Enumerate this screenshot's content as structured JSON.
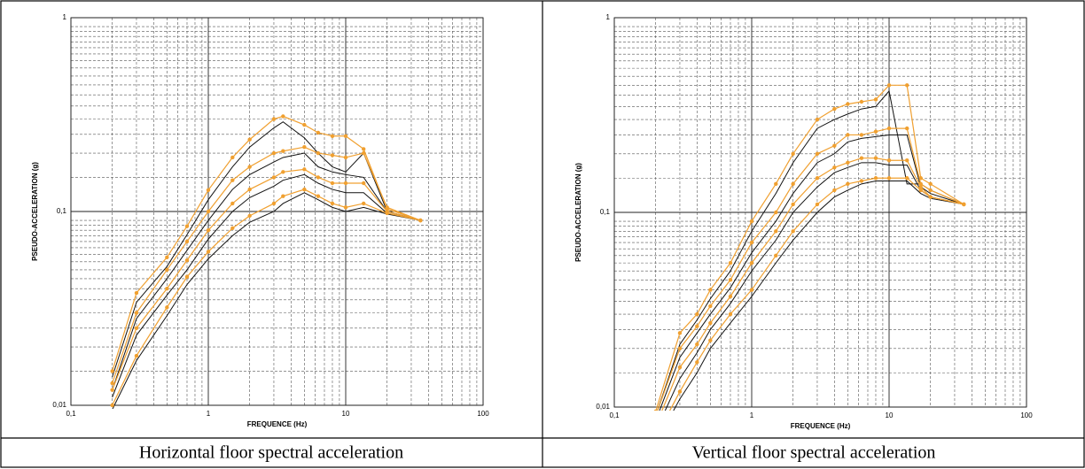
{
  "chart_data": [
    {
      "type": "line",
      "log_x": true,
      "log_y": true,
      "grid": true,
      "xlabel": "FREQUENCE (Hz)",
      "ylabel": "PSEUDO-ACCELERATION (g)",
      "caption": "Horizontal floor spectral acceleration",
      "xlim": [
        0.1,
        100
      ],
      "ylim": [
        0.01,
        1
      ],
      "xticks": [
        {
          "value": 0.1,
          "label": "0,1"
        },
        1,
        10,
        100
      ],
      "yticks": [
        {
          "value": 0.01,
          "label": "0,01"
        },
        {
          "value": 0.1,
          "label": "0,1"
        },
        1
      ],
      "x": [
        0.2,
        0.3,
        0.5,
        0.7,
        1,
        1.5,
        2,
        3,
        3.5,
        5,
        6.3,
        8,
        10,
        13.5,
        20,
        35
      ],
      "series": [
        {
          "color": "#f0a030",
          "marker": true,
          "values": [
            0.015,
            0.038,
            0.058,
            0.084,
            0.129,
            0.19,
            0.235,
            0.3,
            0.31,
            0.28,
            0.255,
            0.245,
            0.245,
            0.21,
            0.103,
            0.09
          ]
        },
        {
          "color": "#f0a030",
          "marker": true,
          "values": [
            0.013,
            0.03,
            0.05,
            0.07,
            0.1,
            0.145,
            0.17,
            0.2,
            0.205,
            0.215,
            0.2,
            0.195,
            0.19,
            0.2,
            0.105,
            0.09
          ]
        },
        {
          "color": "#f0a030",
          "marker": true,
          "values": [
            0.012,
            0.025,
            0.04,
            0.056,
            0.08,
            0.11,
            0.13,
            0.15,
            0.16,
            0.165,
            0.15,
            0.14,
            0.14,
            0.14,
            0.1,
            0.09
          ]
        },
        {
          "color": "#f0a030",
          "marker": true,
          "values": [
            0.01,
            0.018,
            0.032,
            0.046,
            0.062,
            0.082,
            0.095,
            0.11,
            0.12,
            0.13,
            0.12,
            0.11,
            0.105,
            0.11,
            0.098,
            0.09
          ]
        },
        {
          "color": "#111111",
          "marker": false,
          "values": [
            0.014,
            0.034,
            0.052,
            0.076,
            0.115,
            0.17,
            0.215,
            0.27,
            0.29,
            0.24,
            0.2,
            0.17,
            0.16,
            0.2,
            0.1,
            0.09
          ]
        },
        {
          "color": "#111111",
          "marker": false,
          "values": [
            0.012,
            0.028,
            0.045,
            0.063,
            0.09,
            0.13,
            0.155,
            0.18,
            0.19,
            0.2,
            0.17,
            0.16,
            0.155,
            0.15,
            0.1,
            0.09
          ]
        },
        {
          "color": "#111111",
          "marker": false,
          "values": [
            0.011,
            0.023,
            0.037,
            0.05,
            0.072,
            0.1,
            0.118,
            0.135,
            0.145,
            0.155,
            0.14,
            0.13,
            0.125,
            0.125,
            0.098,
            0.09
          ]
        },
        {
          "color": "#111111",
          "marker": false,
          "values": [
            0.0095,
            0.017,
            0.029,
            0.042,
            0.057,
            0.075,
            0.088,
            0.1,
            0.11,
            0.125,
            0.115,
            0.105,
            0.1,
            0.105,
            0.097,
            0.09
          ]
        }
      ]
    },
    {
      "type": "line",
      "log_x": true,
      "log_y": true,
      "grid": true,
      "xlabel": "FREQUENCE (Hz)",
      "ylabel": "PSEUDO-ACCELERATION (g)",
      "caption": "Vertical floor spectral acceleration",
      "xlim": [
        0.1,
        100
      ],
      "ylim": [
        0.01,
        1
      ],
      "xticks": [
        {
          "value": 0.1,
          "label": "0,1"
        },
        1,
        10,
        100
      ],
      "yticks": [
        {
          "value": 0.01,
          "label": "0,01"
        },
        {
          "value": 0.1,
          "label": "0,1"
        },
        1
      ],
      "x": [
        0.2,
        0.3,
        0.4,
        0.5,
        0.7,
        1,
        1.5,
        2,
        3,
        4,
        5,
        6.3,
        8,
        10,
        13.5,
        17,
        20,
        35
      ],
      "series": [
        {
          "color": "#f0a030",
          "marker": true,
          "values": [
            0.0095,
            0.024,
            0.03,
            0.04,
            0.055,
            0.09,
            0.14,
            0.2,
            0.3,
            0.34,
            0.36,
            0.37,
            0.38,
            0.45,
            0.45,
            0.15,
            0.14,
            0.11
          ]
        },
        {
          "color": "#f0a030",
          "marker": true,
          "values": [
            0.009,
            0.02,
            0.026,
            0.033,
            0.045,
            0.07,
            0.1,
            0.14,
            0.2,
            0.22,
            0.25,
            0.25,
            0.26,
            0.27,
            0.27,
            0.14,
            0.13,
            0.11
          ]
        },
        {
          "color": "#f0a030",
          "marker": true,
          "values": [
            0.008,
            0.016,
            0.021,
            0.027,
            0.037,
            0.055,
            0.08,
            0.11,
            0.15,
            0.17,
            0.18,
            0.19,
            0.19,
            0.185,
            0.185,
            0.135,
            0.12,
            0.11
          ]
        },
        {
          "color": "#f0a030",
          "marker": true,
          "values": [
            0.007,
            0.012,
            0.017,
            0.022,
            0.03,
            0.04,
            0.06,
            0.08,
            0.11,
            0.13,
            0.14,
            0.145,
            0.15,
            0.15,
            0.15,
            0.13,
            0.12,
            0.11
          ]
        },
        {
          "color": "#111111",
          "marker": false,
          "values": [
            0.009,
            0.021,
            0.028,
            0.036,
            0.05,
            0.08,
            0.125,
            0.18,
            0.27,
            0.3,
            0.32,
            0.34,
            0.35,
            0.42,
            0.14,
            0.14,
            0.13,
            0.11
          ]
        },
        {
          "color": "#111111",
          "marker": false,
          "values": [
            0.0085,
            0.018,
            0.024,
            0.03,
            0.041,
            0.062,
            0.09,
            0.125,
            0.18,
            0.2,
            0.23,
            0.24,
            0.245,
            0.25,
            0.25,
            0.135,
            0.125,
            0.11
          ]
        },
        {
          "color": "#111111",
          "marker": false,
          "values": [
            0.0075,
            0.014,
            0.019,
            0.025,
            0.034,
            0.05,
            0.072,
            0.1,
            0.135,
            0.16,
            0.17,
            0.18,
            0.18,
            0.175,
            0.175,
            0.13,
            0.12,
            0.11
          ]
        },
        {
          "color": "#111111",
          "marker": false,
          "values": [
            0.0065,
            0.011,
            0.015,
            0.02,
            0.027,
            0.037,
            0.055,
            0.072,
            0.1,
            0.12,
            0.13,
            0.14,
            0.145,
            0.145,
            0.145,
            0.125,
            0.118,
            0.11
          ]
        }
      ]
    }
  ]
}
